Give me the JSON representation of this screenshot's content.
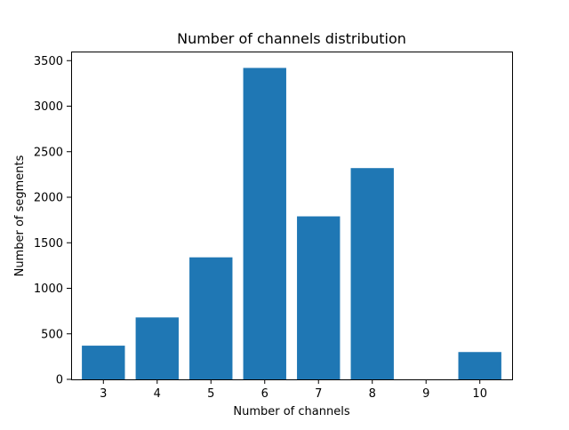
{
  "chart_data": {
    "type": "bar",
    "title": "Number of channels distribution",
    "xlabel": "Number of channels",
    "ylabel": "Number of segments",
    "categories": [
      "3",
      "4",
      "5",
      "6",
      "7",
      "8",
      "9",
      "10"
    ],
    "values": [
      370,
      680,
      1340,
      3420,
      1790,
      2320,
      0,
      300
    ],
    "ylim": [
      0,
      3600
    ],
    "yticks": [
      0,
      500,
      1000,
      1500,
      2000,
      2500,
      3000,
      3500
    ],
    "bar_color": "#1f77b4",
    "grid": false,
    "legend": "none"
  }
}
